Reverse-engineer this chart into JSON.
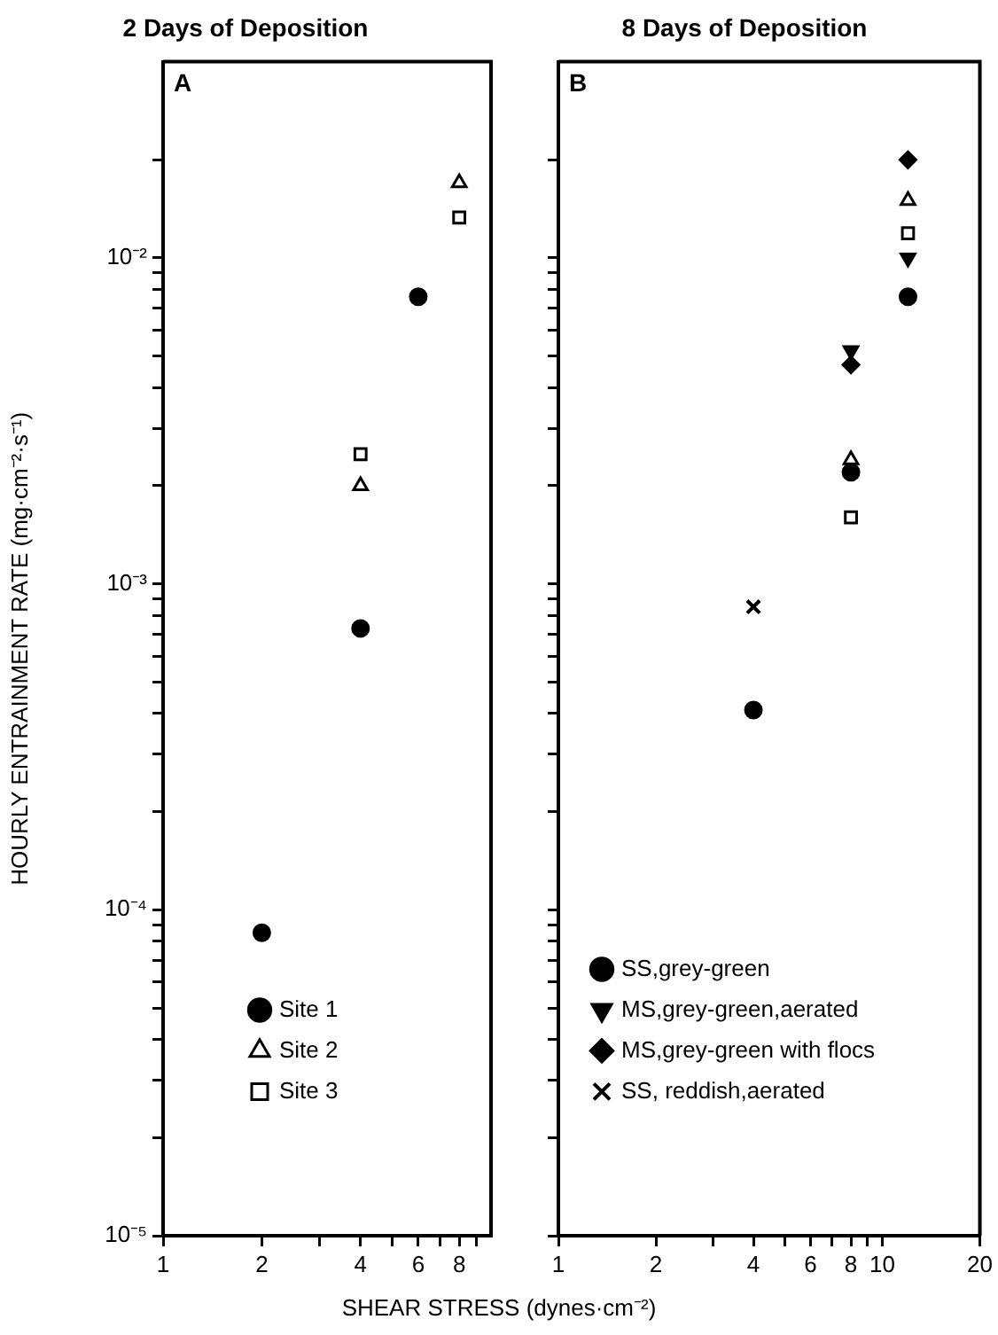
{
  "chart_data": [
    {
      "type": "scatter",
      "title": "2 Days of Deposition",
      "ylabel": "HOURLY ENTRAINMENT RATE (mg·cm⁻²·s⁻¹)",
      "xlabel": "SHEAR STRESS (dynes·cm⁻²)",
      "annotations": [
        "A"
      ],
      "log": "xy",
      "grid": false,
      "legend": "bottom",
      "xlim": [
        1,
        10
      ],
      "xticks": [
        1,
        2,
        {
          "value": 3,
          "label": null
        },
        4,
        {
          "value": 5,
          "label": null
        },
        6,
        {
          "value": 7,
          "label": null
        },
        8,
        {
          "value": 9,
          "label": null
        }
      ],
      "ylim": [
        1e-05,
        0.04
      ],
      "yticks": [
        {
          "value": 1e-05,
          "label": "10⁻⁵"
        },
        {
          "value": 2e-05,
          "label": null
        },
        {
          "value": 3e-05,
          "label": null
        },
        {
          "value": 4e-05,
          "label": null
        },
        {
          "value": 5e-05,
          "label": null
        },
        {
          "value": 6e-05,
          "label": null
        },
        {
          "value": 7e-05,
          "label": null
        },
        {
          "value": 8e-05,
          "label": null
        },
        {
          "value": 9e-05,
          "label": null
        },
        {
          "value": 0.0001,
          "label": "10⁻⁴"
        },
        {
          "value": 0.0002,
          "label": null
        },
        {
          "value": 0.0003,
          "label": null
        },
        {
          "value": 0.0004,
          "label": null
        },
        {
          "value": 0.0005,
          "label": null
        },
        {
          "value": 0.0006,
          "label": null
        },
        {
          "value": 0.0007,
          "label": null
        },
        {
          "value": 0.0008,
          "label": null
        },
        {
          "value": 0.0009,
          "label": null
        },
        {
          "value": 0.001,
          "label": "10⁻³"
        },
        {
          "value": 0.002,
          "label": null
        },
        {
          "value": 0.003,
          "label": null
        },
        {
          "value": 0.004,
          "label": null
        },
        {
          "value": 0.005,
          "label": null
        },
        {
          "value": 0.006,
          "label": null
        },
        {
          "value": 0.007,
          "label": null
        },
        {
          "value": 0.008,
          "label": null
        },
        {
          "value": 0.009,
          "label": null
        },
        {
          "value": 0.01,
          "label": "10⁻²"
        },
        {
          "value": 0.02,
          "label": null
        }
      ],
      "series": [
        {
          "name": "Site 1",
          "color": "#000000",
          "marker": "circle",
          "x": [
            2,
            4,
            6
          ],
          "values": [
            8.5e-05,
            0.00073,
            0.0076
          ]
        },
        {
          "name": "Site 2",
          "color": "#000000",
          "marker": "triangle",
          "x": [
            4,
            8
          ],
          "values": [
            0.002,
            0.017
          ]
        },
        {
          "name": "Site 3",
          "color": "#000000",
          "marker": "square",
          "x": [
            4,
            8
          ],
          "values": [
            0.0025,
            0.0133
          ]
        }
      ]
    },
    {
      "type": "scatter",
      "title": "8 Days of Deposition",
      "annotations": [
        "B"
      ],
      "log": "xy",
      "grid": false,
      "legend": "bottom",
      "tick_labels": "x",
      "xlim": [
        1,
        20
      ],
      "xticks": [
        1,
        2,
        {
          "value": 3,
          "label": null
        },
        4,
        {
          "value": 5,
          "label": null
        },
        6,
        {
          "value": 7,
          "label": null
        },
        8,
        {
          "value": 9,
          "label": null
        },
        10,
        20
      ],
      "ylim": [
        1e-05,
        0.04
      ],
      "yticks": [
        {
          "value": 1e-05,
          "label": null
        },
        {
          "value": 2e-05,
          "label": null
        },
        {
          "value": 3e-05,
          "label": null
        },
        {
          "value": 4e-05,
          "label": null
        },
        {
          "value": 5e-05,
          "label": null
        },
        {
          "value": 6e-05,
          "label": null
        },
        {
          "value": 7e-05,
          "label": null
        },
        {
          "value": 8e-05,
          "label": null
        },
        {
          "value": 9e-05,
          "label": null
        },
        {
          "value": 0.0001,
          "label": null
        },
        {
          "value": 0.0002,
          "label": null
        },
        {
          "value": 0.0003,
          "label": null
        },
        {
          "value": 0.0004,
          "label": null
        },
        {
          "value": 0.0005,
          "label": null
        },
        {
          "value": 0.0006,
          "label": null
        },
        {
          "value": 0.0007,
          "label": null
        },
        {
          "value": 0.0008,
          "label": null
        },
        {
          "value": 0.0009,
          "label": null
        },
        {
          "value": 0.001,
          "label": null
        },
        {
          "value": 0.002,
          "label": null
        },
        {
          "value": 0.003,
          "label": null
        },
        {
          "value": 0.004,
          "label": null
        },
        {
          "value": 0.005,
          "label": null
        },
        {
          "value": 0.006,
          "label": null
        },
        {
          "value": 0.007,
          "label": null
        },
        {
          "value": 0.008,
          "label": null
        },
        {
          "value": 0.009,
          "label": null
        },
        {
          "value": 0.01,
          "label": null
        },
        {
          "value": 0.02,
          "label": null
        }
      ],
      "series": [
        {
          "name": "SS,grey-green",
          "color": "#000000",
          "marker": "circle",
          "x": [
            4,
            8,
            12
          ],
          "values": [
            0.00041,
            0.0022,
            0.0076
          ]
        },
        {
          "name": "MS,grey-green,aerated",
          "color": "#000000",
          "marker": "triangle-down",
          "x": [
            8,
            12
          ],
          "values": [
            0.0052,
            0.01
          ]
        },
        {
          "name": "MS,grey-green with flocs",
          "color": "#000000",
          "marker": "diamond",
          "x": [
            8,
            12
          ],
          "values": [
            0.0047,
            0.02
          ]
        },
        {
          "name": "SS, reddish,aerated",
          "color": "#000000",
          "marker": "cross",
          "x": [
            4
          ],
          "values": [
            0.00085
          ]
        },
        {
          "color": "#000000",
          "marker": "triangle",
          "x": [
            8,
            12
          ],
          "values": [
            0.0024,
            0.015
          ]
        },
        {
          "color": "#000000",
          "marker": "square",
          "x": [
            8,
            12
          ],
          "values": [
            0.0016,
            0.0119
          ]
        }
      ]
    }
  ]
}
